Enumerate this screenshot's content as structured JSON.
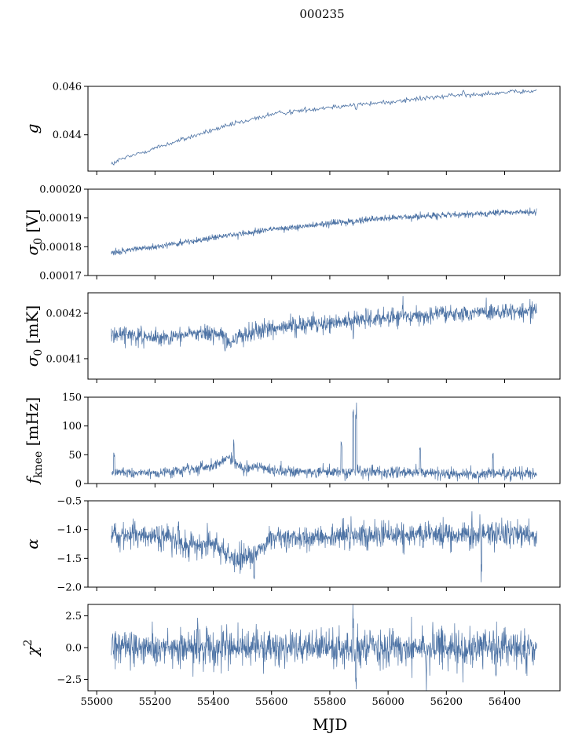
{
  "chart_data": {
    "type": "line",
    "title": "000235",
    "xlabel": "MJD",
    "x_range": [
      55050,
      56510
    ],
    "xlim": [
      54970,
      56590
    ],
    "x_ticks": [
      55000,
      55200,
      55400,
      55600,
      55800,
      56000,
      56200,
      56400
    ],
    "series_color": "#4c72a4",
    "panels": [
      {
        "name": "g",
        "ylabel_main": "g",
        "ylabel_sub": "",
        "ylabel_unit": "",
        "ylim": [
          0.0425,
          0.046
        ],
        "y_ticks": [
          {
            "value": 0.044,
            "label": "0.044"
          },
          {
            "value": 0.046,
            "label": "0.046"
          }
        ],
        "trend": [
          [
            55050,
            0.04285
          ],
          [
            55200,
            0.04345
          ],
          [
            55400,
            0.0442
          ],
          [
            55600,
            0.04485
          ],
          [
            55800,
            0.04515
          ],
          [
            56000,
            0.04535
          ],
          [
            56200,
            0.0456
          ],
          [
            56400,
            0.04575
          ],
          [
            56510,
            0.0458
          ]
        ],
        "noise": 7e-05,
        "glitches": [
          [
            55060,
            -0.0001
          ],
          [
            55480,
            0.0001
          ],
          [
            55890,
            -0.0002
          ],
          [
            56260,
            0.00015
          ]
        ]
      },
      {
        "name": "sigma0-v",
        "ylabel_main": "σ",
        "ylabel_sub": "0",
        "ylabel_unit": "[V]",
        "ylim": [
          0.00017,
          0.0002
        ],
        "y_ticks": [
          {
            "value": 0.00017,
            "label": "0.00017"
          },
          {
            "value": 0.00018,
            "label": "0.00018"
          },
          {
            "value": 0.00019,
            "label": "0.00019"
          },
          {
            "value": 0.0002,
            "label": "0.00020"
          }
        ],
        "trend": [
          [
            55050,
            0.000178
          ],
          [
            55200,
            0.00018
          ],
          [
            55400,
            0.000183
          ],
          [
            55600,
            0.000186
          ],
          [
            55800,
            0.000188
          ],
          [
            56000,
            0.00019
          ],
          [
            56200,
            0.000191
          ],
          [
            56400,
            0.000192
          ],
          [
            56510,
            0.000192
          ]
        ],
        "noise": 7e-07,
        "glitches": [
          [
            55880,
            -1.5e-06
          ]
        ]
      },
      {
        "name": "sigma0-mk",
        "ylabel_main": "σ",
        "ylabel_sub": "0",
        "ylabel_unit": "[mK]",
        "ylim": [
          0.004055,
          0.004245
        ],
        "y_ticks": [
          {
            "value": 0.0041,
            "label": "0.0041"
          },
          {
            "value": 0.0042,
            "label": "0.0042"
          }
        ],
        "trend": [
          [
            55050,
            0.004155
          ],
          [
            55200,
            0.004145
          ],
          [
            55400,
            0.00416
          ],
          [
            55450,
            0.00414
          ],
          [
            55500,
            0.00415
          ],
          [
            55600,
            0.00417
          ],
          [
            55800,
            0.00418
          ],
          [
            56000,
            0.00419
          ],
          [
            56200,
            0.0042
          ],
          [
            56400,
            0.004205
          ],
          [
            56510,
            0.004205
          ]
        ],
        "noise": 1.2e-05,
        "glitches": [
          [
            55440,
            -3e-05
          ],
          [
            55880,
            -4e-05
          ],
          [
            56050,
            3e-05
          ]
        ]
      },
      {
        "name": "fknee",
        "ylabel_main": "f",
        "ylabel_sub": "knee",
        "ylabel_unit": "[mHz]",
        "ylim": [
          0,
          150
        ],
        "y_ticks": [
          {
            "value": 0,
            "label": "0"
          },
          {
            "value": 50,
            "label": "50"
          },
          {
            "value": 100,
            "label": "100"
          },
          {
            "value": 150,
            "label": "150"
          }
        ],
        "trend": [
          [
            55050,
            20
          ],
          [
            55200,
            18
          ],
          [
            55400,
            30
          ],
          [
            55450,
            45
          ],
          [
            55500,
            25
          ],
          [
            55550,
            30
          ],
          [
            55600,
            22
          ],
          [
            55800,
            20
          ],
          [
            56000,
            20
          ],
          [
            56200,
            18
          ],
          [
            56400,
            17
          ],
          [
            56510,
            17
          ]
        ],
        "noise": 6,
        "glitches": [
          [
            55060,
            35
          ],
          [
            55470,
            45
          ],
          [
            55840,
            60
          ],
          [
            55880,
            130
          ],
          [
            55890,
            140
          ],
          [
            56110,
            55
          ],
          [
            56360,
            35
          ]
        ]
      },
      {
        "name": "alpha",
        "ylabel_main": "α",
        "ylabel_sub": "",
        "ylabel_unit": "",
        "ylim": [
          -2,
          -0.5
        ],
        "y_ticks": [
          {
            "value": -2,
            "label": "−2.0"
          },
          {
            "value": -1.5,
            "label": "−1.5"
          },
          {
            "value": -1,
            "label": "−1.0"
          },
          {
            "value": -0.5,
            "label": "−0.5"
          }
        ],
        "trend": [
          [
            55050,
            -1.1
          ],
          [
            55250,
            -1.1
          ],
          [
            55300,
            -1.3
          ],
          [
            55400,
            -1.2
          ],
          [
            55450,
            -1.45
          ],
          [
            55500,
            -1.5
          ],
          [
            55550,
            -1.4
          ],
          [
            55600,
            -1.15
          ],
          [
            55800,
            -1.1
          ],
          [
            56000,
            -1.1
          ],
          [
            56200,
            -1.1
          ],
          [
            56400,
            -1.1
          ],
          [
            56510,
            -1.1
          ]
        ],
        "noise": 0.14,
        "glitches": [
          [
            55280,
            0.3
          ],
          [
            55540,
            -0.5
          ],
          [
            56320,
            -0.75
          ]
        ]
      },
      {
        "name": "chi2",
        "ylabel_main": "χ",
        "ylabel_sub": "",
        "ylabel_sup": "2",
        "ylabel_unit": "",
        "ylim": [
          -3.4,
          3.4
        ],
        "y_ticks": [
          {
            "value": -2.5,
            "label": "−2.5"
          },
          {
            "value": 0,
            "label": "0.0"
          },
          {
            "value": 2.5,
            "label": "2.5"
          }
        ],
        "trend": [
          [
            55050,
            0
          ],
          [
            56510,
            0
          ]
        ],
        "noise": 0.9,
        "glitches": [
          [
            55880,
            3.3
          ],
          [
            55890,
            -3.3
          ],
          [
            56130,
            -3.2
          ],
          [
            56370,
            -3
          ]
        ]
      }
    ]
  }
}
